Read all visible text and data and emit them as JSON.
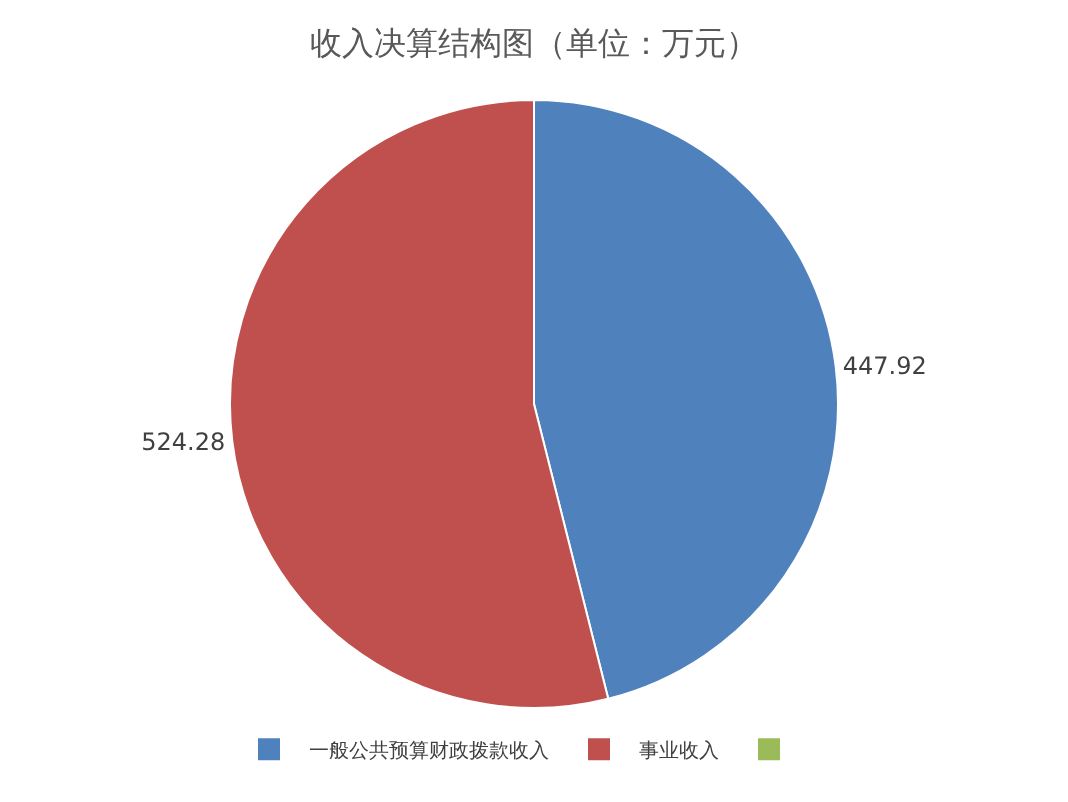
{
  "chart_data": {
    "type": "pie",
    "title": "收入决算结构图（单位：万元）",
    "categories": [
      "一般公共预算财政拨款收入",
      "事业收入",
      null
    ],
    "values": [
      447.92,
      524.28,
      0
    ],
    "colors": [
      "#4f81bd",
      "#c0504d",
      "#9bbb59"
    ],
    "value_labels": [
      "447.92",
      "524.28",
      null
    ],
    "legend": "bottom"
  }
}
